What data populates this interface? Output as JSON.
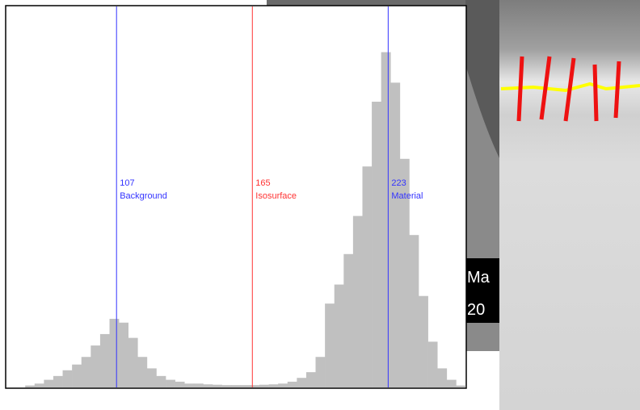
{
  "chart_data": {
    "type": "histogram",
    "bins": [
      60,
      64,
      68,
      72,
      76,
      80,
      84,
      88,
      92,
      96,
      100,
      104,
      108,
      112,
      116,
      120,
      124,
      128,
      132,
      136,
      140,
      144,
      148,
      152,
      156,
      160,
      164,
      168,
      172,
      176,
      180,
      184,
      188,
      192,
      196,
      200,
      204,
      208,
      212,
      216,
      220,
      224,
      228,
      232,
      236,
      240,
      244,
      248,
      252,
      256
    ],
    "values": [
      0,
      0,
      0.5,
      1,
      2,
      3,
      4.5,
      6,
      8,
      11,
      14,
      18,
      17,
      13,
      8,
      5,
      3,
      2,
      1.5,
      1,
      1,
      0.8,
      0.7,
      0.6,
      0.6,
      0.6,
      0.6,
      0.7,
      0.8,
      1,
      1.5,
      2.5,
      4,
      8,
      22,
      27,
      35,
      45,
      58,
      75,
      88,
      80,
      60,
      40,
      24,
      12,
      5,
      2,
      0.5
    ],
    "color": "#c0c0c0",
    "xlim": [
      60,
      256
    ],
    "ylim": [
      0,
      100
    ],
    "markers": [
      {
        "value": 107,
        "label": "Background",
        "color": "#3333ff"
      },
      {
        "value": 165,
        "label": "Isosurface",
        "color": "#ff3333"
      },
      {
        "value": 223,
        "label": "Material",
        "color": "#3333ff"
      }
    ]
  },
  "overlay_labels": [
    "Ma",
    "20"
  ]
}
